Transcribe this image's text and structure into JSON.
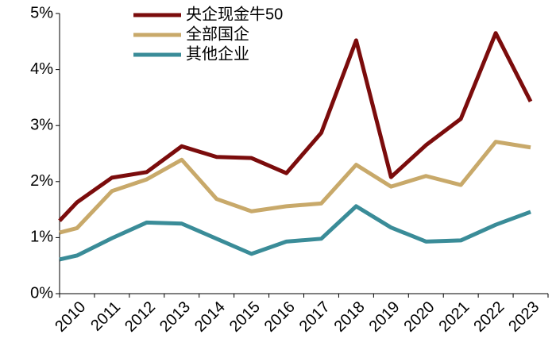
{
  "chart_data": {
    "type": "line",
    "categories": [
      null,
      "2010",
      "2011",
      "2012",
      "2013",
      "2014",
      "2015",
      "2016",
      "2017",
      "2018",
      "2019",
      "2020",
      "2021",
      "2022",
      "2023"
    ],
    "series": [
      {
        "name": "央企现金牛50",
        "color": "#7b0c0c",
        "values": [
          1.3,
          1.63,
          2.07,
          2.17,
          2.63,
          2.44,
          2.42,
          2.15,
          2.87,
          4.52,
          2.08,
          2.65,
          3.12,
          4.65,
          3.43
        ]
      },
      {
        "name": "全部国企",
        "color": "#c8a96a",
        "values": [
          1.09,
          1.17,
          1.83,
          2.04,
          2.39,
          1.69,
          1.47,
          1.56,
          1.61,
          2.3,
          1.91,
          2.1,
          1.94,
          2.71,
          2.61
        ]
      },
      {
        "name": "其他企业",
        "color": "#3a8c98",
        "values": [
          0.61,
          0.68,
          0.99,
          1.27,
          1.25,
          0.98,
          0.71,
          0.93,
          0.98,
          1.56,
          1.18,
          0.93,
          0.95,
          1.23,
          1.46
        ]
      }
    ],
    "ylim": [
      0,
      5
    ],
    "yticks": [
      {
        "value": 0,
        "label": "0%"
      },
      {
        "value": 1,
        "label": "1%"
      },
      {
        "value": 2,
        "label": "2%"
      },
      {
        "value": 3,
        "label": "3%"
      },
      {
        "value": 4,
        "label": "4%"
      },
      {
        "value": 5,
        "label": "5%"
      }
    ],
    "grid": false,
    "legend": "top"
  }
}
